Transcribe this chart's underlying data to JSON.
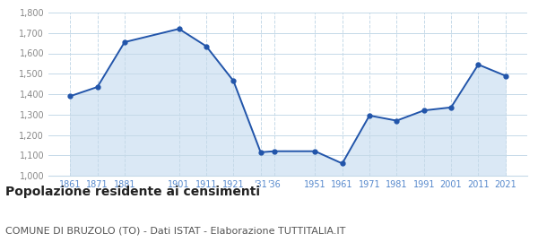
{
  "years": [
    1861,
    1871,
    1881,
    1901,
    1911,
    1921,
    1931,
    1936,
    1951,
    1961,
    1971,
    1981,
    1991,
    2001,
    2011,
    2021
  ],
  "population": [
    1390,
    1435,
    1655,
    1720,
    1635,
    1465,
    1115,
    1120,
    1120,
    1060,
    1295,
    1270,
    1320,
    1335,
    1545,
    1490
  ],
  "xtick_positions": [
    1861,
    1871,
    1881,
    1901,
    1911,
    1921,
    1931,
    1936,
    1951,
    1961,
    1971,
    1981,
    1991,
    2001,
    2011,
    2021
  ],
  "xtick_labels": [
    "1861",
    "1871",
    "1881",
    "1901",
    "1911",
    "1921",
    "'31",
    "'36",
    "1951",
    "1961",
    "1971",
    "1981",
    "1991",
    "2001",
    "2011",
    "2021"
  ],
  "yticks": [
    1000,
    1100,
    1200,
    1300,
    1400,
    1500,
    1600,
    1700,
    1800
  ],
  "ytick_labels": [
    "1,000",
    "1,100",
    "1,200",
    "1,300",
    "1,400",
    "1,500",
    "1,600",
    "1,700",
    "1,800"
  ],
  "ylim": [
    1000,
    1800
  ],
  "xlim_left": 1853,
  "xlim_right": 2029,
  "line_color": "#2255aa",
  "fill_color": "#dae8f5",
  "marker_color": "#2255aa",
  "bg_color": "#ffffff",
  "grid_color": "#c5d9e8",
  "title": "Popolazione residente ai censimenti",
  "subtitle": "COMUNE DI BRUZOLO (TO) - Dati ISTAT - Elaborazione TUTTITALIA.IT",
  "title_fontsize": 10,
  "subtitle_fontsize": 8,
  "tick_label_color": "#5588cc",
  "ytick_label_color": "#888888",
  "tick_fontsize": 7,
  "title_color": "#222222",
  "subtitle_color": "#555555"
}
